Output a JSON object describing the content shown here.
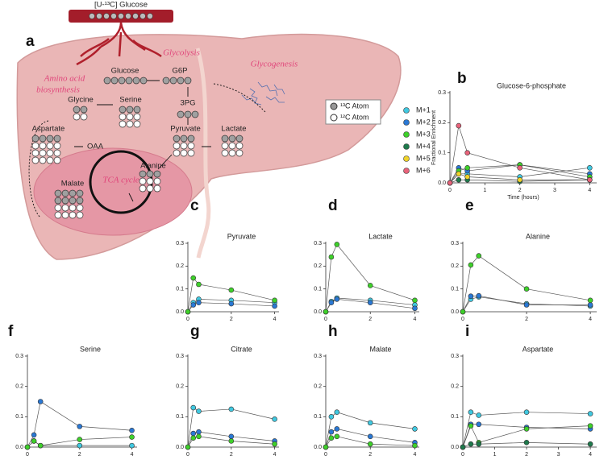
{
  "diagram": {
    "panel": "a",
    "glucose_infusion": "[U-¹³C] Glucose",
    "glycolysis": "Glycolysis",
    "glycogenesis": "Glycogenesis",
    "amino_1": "Amino acid",
    "amino_2": "biosynthesis",
    "glucose": "Glucose",
    "g6p": "G6P",
    "pg3": "3PG",
    "glycine": "Glycine",
    "serine": "Serine",
    "pyruvate": "Pyruvate",
    "lactate": "Lactate",
    "aspartate": "Aspartate",
    "oaa": "OAA",
    "alanine": "Alanine",
    "malate": "Malate",
    "tca": "TCA cycle",
    "c13": "¹³C Atom",
    "c12": "¹²C Atom"
  },
  "chart_data": [
    {
      "type": "line",
      "panel": "b",
      "title": "Glucose-6-phosphate",
      "ylabel": "Fractional Enrichment",
      "xlabel": "Time (hours)",
      "x": [
        0,
        0.25,
        0.5,
        2,
        4
      ],
      "xlim": [
        0,
        4.2
      ],
      "xticks": [
        0,
        1,
        2,
        3,
        4
      ],
      "ylim": [
        0,
        0.3
      ],
      "yticks": [
        {
          "value": 0,
          "label": "0.0"
        },
        0.1,
        0.2,
        0.3
      ],
      "legend": "right",
      "series": [
        {
          "name": "M+1",
          "color": "#40c8e0",
          "values": [
            0,
            0.03,
            0.03,
            0.02,
            0.05
          ]
        },
        {
          "name": "M+2",
          "color": "#2a78d4",
          "values": [
            0,
            0.05,
            0.04,
            0.06,
            0.03
          ]
        },
        {
          "name": "M+3",
          "color": "#3ed02a",
          "values": [
            0,
            0.04,
            0.05,
            0.06,
            0.02
          ]
        },
        {
          "name": "M+4",
          "color": "#1e7a4c",
          "values": [
            0,
            0.01,
            0.01,
            0.005,
            0.01
          ]
        },
        {
          "name": "M+5",
          "color": "#f0d42a",
          "values": [
            0,
            0.03,
            0.02,
            0.01,
            0.01
          ]
        },
        {
          "name": "M+6",
          "color": "#e8637a",
          "values": [
            0,
            0.19,
            0.1,
            0.05,
            0.01
          ]
        }
      ]
    },
    {
      "type": "line",
      "panel": "c",
      "title": "Pyruvate",
      "x": [
        0,
        0.25,
        0.5,
        2,
        4
      ],
      "xlim": [
        0,
        4.2
      ],
      "xticks": [
        0,
        2,
        4
      ],
      "ylim": [
        0,
        0.3
      ],
      "yticks": [
        {
          "value": 0,
          "label": "0.0"
        },
        0.1,
        0.2,
        0.3
      ],
      "series": [
        {
          "name": "M+1",
          "color": "#40c8e0",
          "values": [
            0,
            0.04,
            0.055,
            0.05,
            0.04
          ]
        },
        {
          "name": "M+2",
          "color": "#2a78d4",
          "values": [
            0,
            0.03,
            0.04,
            0.035,
            0.025
          ]
        },
        {
          "name": "M+3",
          "color": "#3ed02a",
          "values": [
            0,
            0.148,
            0.12,
            0.095,
            0.05
          ]
        }
      ]
    },
    {
      "type": "line",
      "panel": "d",
      "title": "Lactate",
      "x": [
        0,
        0.25,
        0.5,
        2,
        4
      ],
      "xlim": [
        0,
        4.2
      ],
      "xticks": [
        0,
        2,
        4
      ],
      "ylim": [
        0,
        0.3
      ],
      "yticks": [
        {
          "value": 0,
          "label": "0.0"
        },
        0.1,
        0.2,
        0.3
      ],
      "series": [
        {
          "name": "M+1",
          "color": "#40c8e0",
          "values": [
            0,
            0.045,
            0.06,
            0.05,
            0.03
          ]
        },
        {
          "name": "M+2",
          "color": "#2a78d4",
          "values": [
            0,
            0.04,
            0.055,
            0.04,
            0.015
          ]
        },
        {
          "name": "M+3",
          "color": "#3ed02a",
          "values": [
            0,
            0.24,
            0.295,
            0.115,
            0.05
          ]
        }
      ]
    },
    {
      "type": "line",
      "panel": "e",
      "title": "Alanine",
      "x": [
        0,
        0.25,
        0.5,
        2,
        4
      ],
      "xlim": [
        0,
        4.2
      ],
      "xticks": [
        0,
        2,
        4
      ],
      "ylim": [
        0,
        0.3
      ],
      "yticks": [
        {
          "value": 0,
          "label": "0.0"
        },
        0.1,
        0.2,
        0.3
      ],
      "series": [
        {
          "name": "M+1",
          "color": "#40c8e0",
          "values": [
            0,
            0.055,
            0.065,
            0.035,
            0.025
          ]
        },
        {
          "name": "M+2",
          "color": "#2a78d4",
          "values": [
            0,
            0.068,
            0.07,
            0.03,
            0.03
          ]
        },
        {
          "name": "M+3",
          "color": "#3ed02a",
          "values": [
            0,
            0.205,
            0.245,
            0.1,
            0.05
          ]
        }
      ]
    },
    {
      "type": "line",
      "panel": "f",
      "title": "Serine",
      "x": [
        0,
        0.25,
        0.5,
        2,
        4
      ],
      "xlim": [
        0,
        4.2
      ],
      "xticks": [
        0,
        2,
        4
      ],
      "ylim": [
        0,
        0.3
      ],
      "yticks": [
        {
          "value": 0,
          "label": "0.0"
        },
        0.1,
        0.2,
        0.3
      ],
      "series": [
        {
          "name": "M+1",
          "color": "#40c8e0",
          "values": [
            0,
            0.02,
            0.005,
            0.005,
            0.005
          ]
        },
        {
          "name": "M+2",
          "color": "#2a78d4",
          "values": [
            0,
            0.04,
            0.15,
            0.068,
            0.055
          ]
        },
        {
          "name": "M+3",
          "color": "#3ed02a",
          "values": [
            0,
            0.02,
            0.005,
            0.025,
            0.033
          ]
        }
      ]
    },
    {
      "type": "line",
      "panel": "g",
      "title": "Citrate",
      "x": [
        0,
        0.25,
        0.5,
        2,
        4
      ],
      "xlim": [
        0,
        4.2
      ],
      "xticks": [
        0,
        2,
        4
      ],
      "ylim": [
        0,
        0.3
      ],
      "yticks": [
        {
          "value": 0,
          "label": "0.0"
        },
        0.1,
        0.2,
        0.3
      ],
      "series": [
        {
          "name": "M+1",
          "color": "#40c8e0",
          "values": [
            0,
            0.13,
            0.118,
            0.125,
            0.092
          ]
        },
        {
          "name": "M+2",
          "color": "#2a78d4",
          "values": [
            0,
            0.045,
            0.05,
            0.035,
            0.02
          ]
        },
        {
          "name": "M+3",
          "color": "#3ed02a",
          "values": [
            0,
            0.03,
            0.035,
            0.02,
            0.01
          ]
        }
      ]
    },
    {
      "type": "line",
      "panel": "h",
      "title": "Malate",
      "x": [
        0,
        0.25,
        0.5,
        2,
        4
      ],
      "xlim": [
        0,
        4.2
      ],
      "xticks": [
        0,
        2,
        4
      ],
      "ylim": [
        0,
        0.3
      ],
      "yticks": [
        {
          "value": 0,
          "label": "0.0"
        },
        0.1,
        0.2,
        0.3
      ],
      "series": [
        {
          "name": "M+1",
          "color": "#40c8e0",
          "values": [
            0,
            0.1,
            0.115,
            0.08,
            0.06
          ]
        },
        {
          "name": "M+2",
          "color": "#2a78d4",
          "values": [
            0,
            0.05,
            0.06,
            0.035,
            0.015
          ]
        },
        {
          "name": "M+3",
          "color": "#3ed02a",
          "values": [
            0,
            0.03,
            0.035,
            0.01,
            0.005
          ]
        }
      ]
    },
    {
      "type": "line",
      "panel": "i",
      "title": "Aspartate",
      "x": [
        0,
        0.25,
        0.5,
        2,
        4
      ],
      "xlim": [
        0,
        4.2
      ],
      "xticks": [
        0,
        1,
        2,
        3,
        4
      ],
      "ylim": [
        0,
        0.3
      ],
      "yticks": [
        {
          "value": 0,
          "label": "0.0"
        },
        0.1,
        0.2,
        0.3
      ],
      "series": [
        {
          "name": "M+1",
          "color": "#40c8e0",
          "values": [
            0,
            0.115,
            0.105,
            0.115,
            0.11
          ]
        },
        {
          "name": "M+2",
          "color": "#2a78d4",
          "values": [
            0,
            0.075,
            0.075,
            0.065,
            0.06
          ]
        },
        {
          "name": "M+3",
          "color": "#3ed02a",
          "values": [
            0,
            0.07,
            0.015,
            0.06,
            0.07
          ]
        },
        {
          "name": "M+4",
          "color": "#1e7a4c",
          "values": [
            0,
            0.01,
            0.01,
            0.015,
            0.01
          ]
        }
      ]
    }
  ]
}
